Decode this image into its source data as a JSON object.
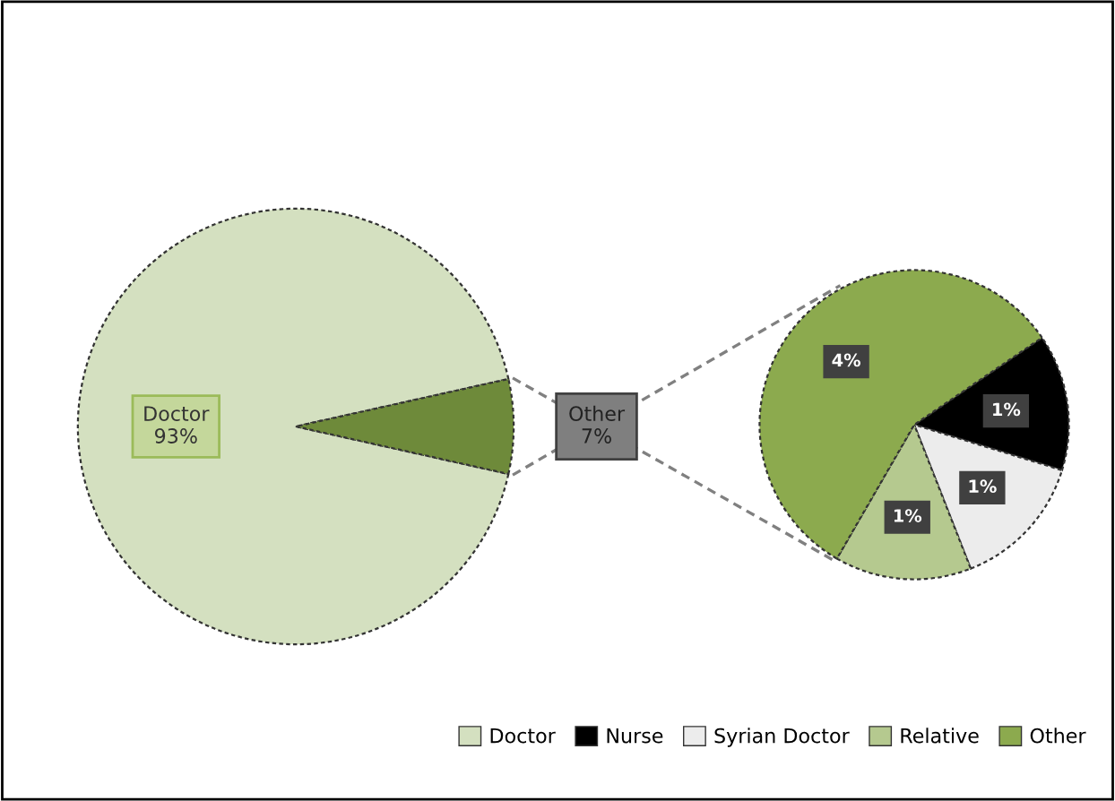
{
  "chart_data": [
    {
      "type": "pie",
      "categories": [
        "Doctor",
        null
      ],
      "values": [
        93,
        7
      ],
      "colors": [
        "#d4e0c0",
        "#6e8a3a"
      ],
      "value_labels": [
        "Doctor\n93%",
        "Other\n7%"
      ],
      "legend": "bottom"
    },
    {
      "type": "pie",
      "categories": [
        "Nurse",
        "Syrian Doctor",
        "Relative",
        "Other"
      ],
      "values": [
        1,
        1,
        1,
        4
      ],
      "colors": [
        "#000000",
        "#ececec",
        "#b5c98f",
        "#8caa4e"
      ],
      "value_labels": [
        "1%",
        "1%",
        "1%",
        "4%"
      ],
      "legend": "bottom"
    }
  ]
}
